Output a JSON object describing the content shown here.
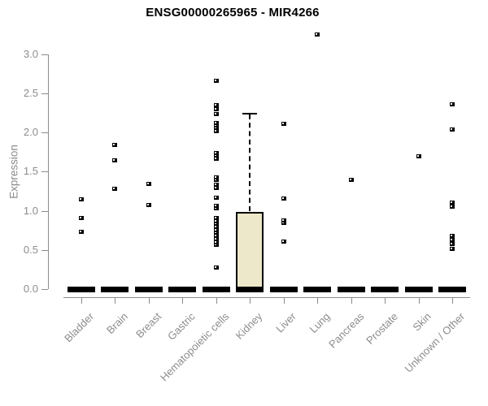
{
  "colors": {
    "axis": "#8c8c8c",
    "tick_label": "#8c8c8c",
    "title": "#000000",
    "box_fill": "#ece8c9",
    "box_border": "#000000",
    "marker": "#000000",
    "background": "#ffffff"
  },
  "chart_data": {
    "type": "boxplot",
    "title": "ENSG00000265965 - MIR4266",
    "xlabel": "",
    "ylabel": "Expression",
    "yticks": [
      "0.0",
      "0.5",
      "1.0",
      "1.5",
      "2.0",
      "2.5",
      "3.0"
    ],
    "ylim": [
      -0.07,
      3.35
    ],
    "grid": false,
    "legend": false,
    "marker": "small-black-open-square",
    "categories": [
      "Bladder",
      "Brain",
      "Breast",
      "Gastric",
      "Hematopoietic cells",
      "Kidney",
      "Liver",
      "Lung",
      "Pancreas",
      "Prostate",
      "Skin",
      "Unknown / Other"
    ],
    "series": [
      {
        "category": "Bladder",
        "median": 0,
        "q1": 0,
        "q3": 0,
        "whisker_low": 0,
        "whisker_high": 0,
        "outliers": [
          0.73,
          0.91,
          1.14
        ]
      },
      {
        "category": "Brain",
        "median": 0,
        "q1": 0,
        "q3": 0,
        "whisker_low": 0,
        "whisker_high": 0,
        "outliers": [
          1.28,
          1.64,
          1.84
        ]
      },
      {
        "category": "Breast",
        "median": 0,
        "q1": 0,
        "q3": 0,
        "whisker_low": 0,
        "whisker_high": 0,
        "outliers": [
          1.07,
          1.34
        ]
      },
      {
        "category": "Gastric",
        "median": 0,
        "q1": 0,
        "q3": 0,
        "whisker_low": 0,
        "whisker_high": 0,
        "outliers": []
      },
      {
        "category": "Hematopoietic cells",
        "median": 0,
        "q1": 0,
        "q3": 0,
        "whisker_low": 0,
        "whisker_high": 0,
        "outliers": [
          0.27,
          0.56,
          0.6,
          0.64,
          0.68,
          0.72,
          0.75,
          0.79,
          0.83,
          0.87,
          0.91,
          1.03,
          1.06,
          1.17,
          1.29,
          1.33,
          1.39,
          1.43,
          1.66,
          1.7,
          1.74,
          2.02,
          2.06,
          2.09,
          2.12,
          2.23,
          2.3,
          2.35,
          2.66
        ]
      },
      {
        "category": "Kidney",
        "median": 0,
        "q1": 0,
        "q3": 0.98,
        "whisker_low": 0,
        "whisker_high": 2.24,
        "outliers": []
      },
      {
        "category": "Liver",
        "median": 0,
        "q1": 0,
        "q3": 0,
        "whisker_low": 0,
        "whisker_high": 0,
        "outliers": [
          0.61,
          0.84,
          0.88,
          1.16,
          2.11
        ]
      },
      {
        "category": "Lung",
        "median": 0,
        "q1": 0,
        "q3": 0,
        "whisker_low": 0,
        "whisker_high": 0,
        "outliers": [
          3.25
        ]
      },
      {
        "category": "Pancreas",
        "median": 0,
        "q1": 0,
        "q3": 0,
        "whisker_low": 0,
        "whisker_high": 0,
        "outliers": [
          1.39
        ]
      },
      {
        "category": "Prostate",
        "median": 0,
        "q1": 0,
        "q3": 0,
        "whisker_low": 0,
        "whisker_high": 0,
        "outliers": []
      },
      {
        "category": "Skin",
        "median": 0,
        "q1": 0,
        "q3": 0,
        "whisker_low": 0,
        "whisker_high": 0,
        "outliers": [
          1.69
        ]
      },
      {
        "category": "Unknown / Other",
        "median": 0,
        "q1": 0,
        "q3": 0,
        "whisker_low": 0,
        "whisker_high": 0,
        "outliers": [
          0.51,
          0.58,
          0.63,
          0.68,
          1.05,
          1.1,
          2.04,
          2.36
        ]
      }
    ]
  }
}
